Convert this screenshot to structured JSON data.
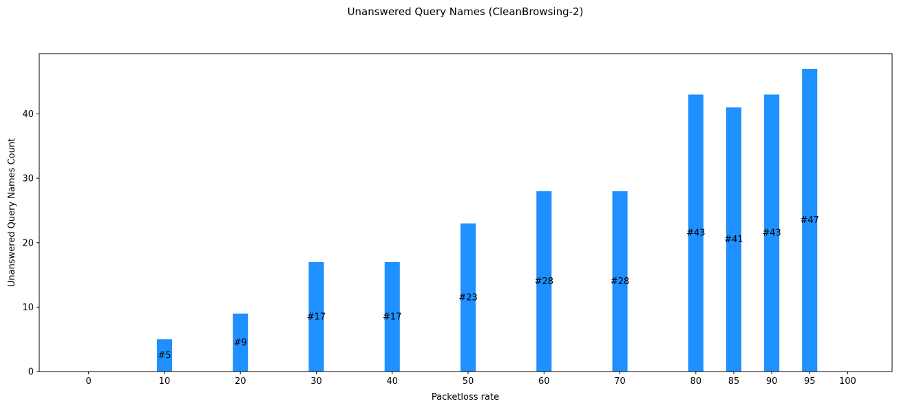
{
  "chart_data": {
    "type": "bar",
    "title": "Unanswered Query Names (CleanBrowsing-2)",
    "xlabel": "Packetloss rate",
    "ylabel": "Unanswered Query Names Count",
    "x": [
      0,
      10,
      20,
      30,
      40,
      50,
      60,
      70,
      80,
      85,
      90,
      95,
      100
    ],
    "x_tick_labels": [
      "0",
      "10",
      "20",
      "30",
      "40",
      "50",
      "60",
      "70",
      "80",
      "85",
      "90",
      "95",
      "100"
    ],
    "values": [
      0,
      5,
      9,
      17,
      17,
      23,
      28,
      28,
      43,
      41,
      43,
      47,
      0
    ],
    "bar_labels": [
      "",
      "#5",
      "#9",
      "#17",
      "#17",
      "#23",
      "#28",
      "#28",
      "#43",
      "#41",
      "#43",
      "#47",
      ""
    ],
    "y_ticks": [
      0,
      10,
      20,
      30,
      40
    ],
    "y_tick_labels": [
      "0",
      "10",
      "20",
      "30",
      "40"
    ],
    "ylim": [
      0,
      49.35
    ],
    "bar_color": "#1e90ff",
    "grid": false,
    "legend": false
  }
}
